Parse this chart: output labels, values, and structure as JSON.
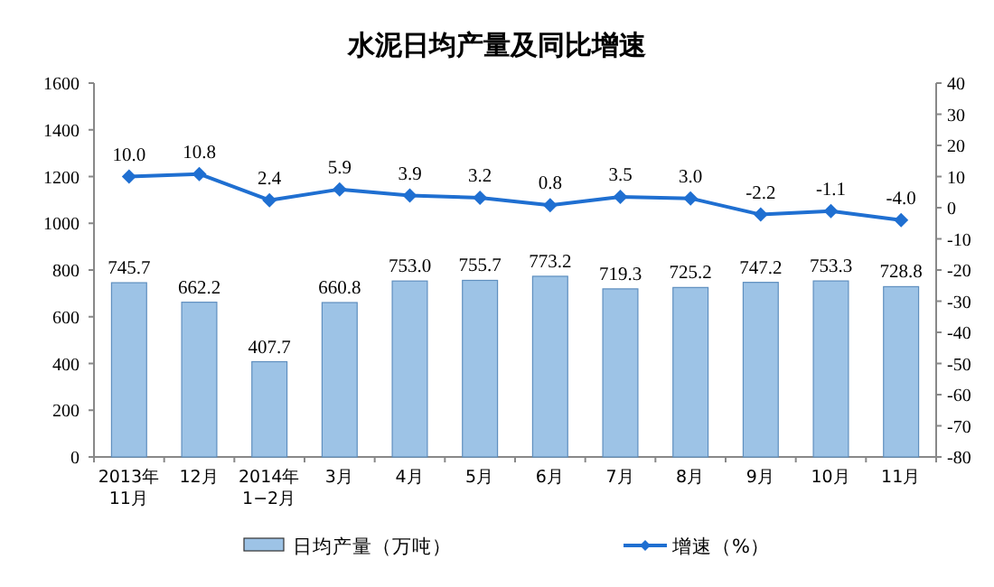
{
  "chart_data": {
    "type": "bar",
    "title": "水泥日均产量及同比增速",
    "categories": [
      "2013年\n11月",
      "12月",
      "2014年\n1−2月",
      "3月",
      "4月",
      "5月",
      "6月",
      "7月",
      "8月",
      "9月",
      "10月",
      "11月"
    ],
    "series": [
      {
        "name": "日均产量（万吨）",
        "color": "#9dc3e6",
        "values": [
          745.7,
          662.2,
          407.7,
          660.8,
          753.0,
          755.7,
          773.2,
          719.3,
          725.2,
          747.2,
          753.3,
          728.8
        ],
        "value_labels": [
          "745.7",
          "662.2",
          "407.7",
          "660.8",
          "753.0",
          "755.7",
          "773.2",
          "719.3",
          "725.2",
          "747.2",
          "753.3",
          "728.8"
        ]
      },
      {
        "name": "增速（%）",
        "type": "line",
        "axis": "y2",
        "color": "#1f6fd1",
        "marker": "diamond",
        "values": [
          10.0,
          10.8,
          2.4,
          5.9,
          3.9,
          3.2,
          0.8,
          3.5,
          3.0,
          -2.2,
          -1.1,
          -4.0
        ],
        "value_labels": [
          "10.0",
          "10.8",
          "2.4",
          "5.9",
          "3.9",
          "3.2",
          "0.8",
          "3.5",
          "3.0",
          "-2.2",
          "-1.1",
          "-4.0"
        ]
      }
    ],
    "ylim": [
      0,
      1600
    ],
    "yticks": [
      0,
      200,
      400,
      600,
      800,
      1000,
      1200,
      1400,
      1600
    ],
    "y2lim": [
      -80,
      40
    ],
    "y2ticks": [
      -80,
      -70,
      -60,
      -50,
      -40,
      -30,
      -20,
      -10,
      0,
      10,
      20,
      30,
      40
    ],
    "legend": "bottom",
    "grid": false
  }
}
